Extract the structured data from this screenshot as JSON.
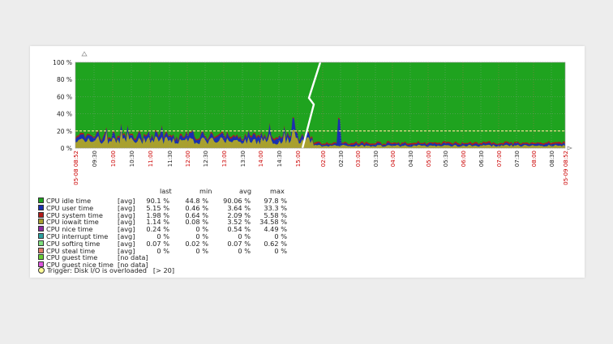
{
  "chart_data": {
    "type": "area",
    "y_ticks": [
      "100 %",
      "80 %",
      "60 %",
      "40 %",
      "20 %",
      "0 %"
    ],
    "y_range": [
      0,
      100
    ],
    "x_labels": [
      {
        "t": "05-08 08:52",
        "red": true
      },
      {
        "t": "09:30",
        "red": false
      },
      {
        "t": "10:00",
        "red": true
      },
      {
        "t": "10:30",
        "red": false
      },
      {
        "t": "11:00",
        "red": true
      },
      {
        "t": "11:30",
        "red": false
      },
      {
        "t": "12:00",
        "red": true
      },
      {
        "t": "12:30",
        "red": false
      },
      {
        "t": "13:00",
        "red": true
      },
      {
        "t": "13:30",
        "red": false
      },
      {
        "t": "14:00",
        "red": true
      },
      {
        "t": "14:30",
        "red": false
      },
      {
        "t": "15:00",
        "red": true
      },
      {
        "t": "02:00",
        "red": true
      },
      {
        "t": "02:30",
        "red": false
      },
      {
        "t": "03:00",
        "red": true
      },
      {
        "t": "03:30",
        "red": false
      },
      {
        "t": "04:00",
        "red": true
      },
      {
        "t": "04:30",
        "red": false
      },
      {
        "t": "05:00",
        "red": true
      },
      {
        "t": "05:30",
        "red": false
      },
      {
        "t": "06:00",
        "red": true
      },
      {
        "t": "06:30",
        "red": false
      },
      {
        "t": "07:00",
        "red": true
      },
      {
        "t": "07:30",
        "red": false
      },
      {
        "t": "08:00",
        "red": true
      },
      {
        "t": "08:30",
        "red": false
      },
      {
        "t": "05-09 08:52",
        "red": true
      }
    ],
    "trigger_threshold": 20,
    "colors": {
      "idle": "#1fa31f",
      "iowait": "#a8a02e",
      "user": "#1a2fb0",
      "system": "#b01a1a",
      "other": "#8a2aa0",
      "grid_red": "#cc0000",
      "trigger": "#fffc99"
    }
  },
  "legend": {
    "headers": {
      "last": "last",
      "min": "min",
      "avg": "avg",
      "max": "max"
    },
    "items": [
      {
        "name": "CPU idle time",
        "func": "[avg]",
        "last": "90.1 %",
        "min": "44.8 %",
        "avg": "90.06 %",
        "max": "97.8 %",
        "color": "#1fa31f"
      },
      {
        "name": "CPU user time",
        "func": "[avg]",
        "last": "5.15 %",
        "min": "0.46 %",
        "avg": "3.64 %",
        "max": "33.3 %",
        "color": "#1a2fb0"
      },
      {
        "name": "CPU system time",
        "func": "[avg]",
        "last": "1.98 %",
        "min": "0.64 %",
        "avg": "2.09 %",
        "max": "5.58 %",
        "color": "#b01a1a"
      },
      {
        "name": "CPU iowait time",
        "func": "[avg]",
        "last": "1.14 %",
        "min": "0.08 %",
        "avg": "3.52 %",
        "max": "34.58 %",
        "color": "#a8a02e"
      },
      {
        "name": "CPU nice time",
        "func": "[avg]",
        "last": "0.24 %",
        "min": "0 %",
        "avg": "0.54 %",
        "max": "4.49 %",
        "color": "#8a2aa0"
      },
      {
        "name": "CPU interrupt time",
        "func": "[avg]",
        "last": "0 %",
        "min": "0 %",
        "avg": "0 %",
        "max": "0 %",
        "color": "#2aa0a0"
      },
      {
        "name": "CPU softirq time",
        "func": "[avg]",
        "last": "0.07 %",
        "min": "0.02 %",
        "avg": "0.07 %",
        "max": "0.62 %",
        "color": "#7fe07f"
      },
      {
        "name": "CPU steal time",
        "func": "[avg]",
        "last": "0 %",
        "min": "0 %",
        "avg": "0 %",
        "max": "0 %",
        "color": "#e07a6a"
      },
      {
        "name": "CPU guest time",
        "func": "[no data]",
        "last": "",
        "min": "",
        "avg": "",
        "max": "",
        "color": "#66cc33"
      },
      {
        "name": "CPU guest nice time",
        "func": "[no data]",
        "last": "",
        "min": "",
        "avg": "",
        "max": "",
        "color": "#dd55dd"
      }
    ],
    "trigger": {
      "label": "Trigger: Disk I/O is overloaded",
      "cond": "[> 20]"
    }
  }
}
